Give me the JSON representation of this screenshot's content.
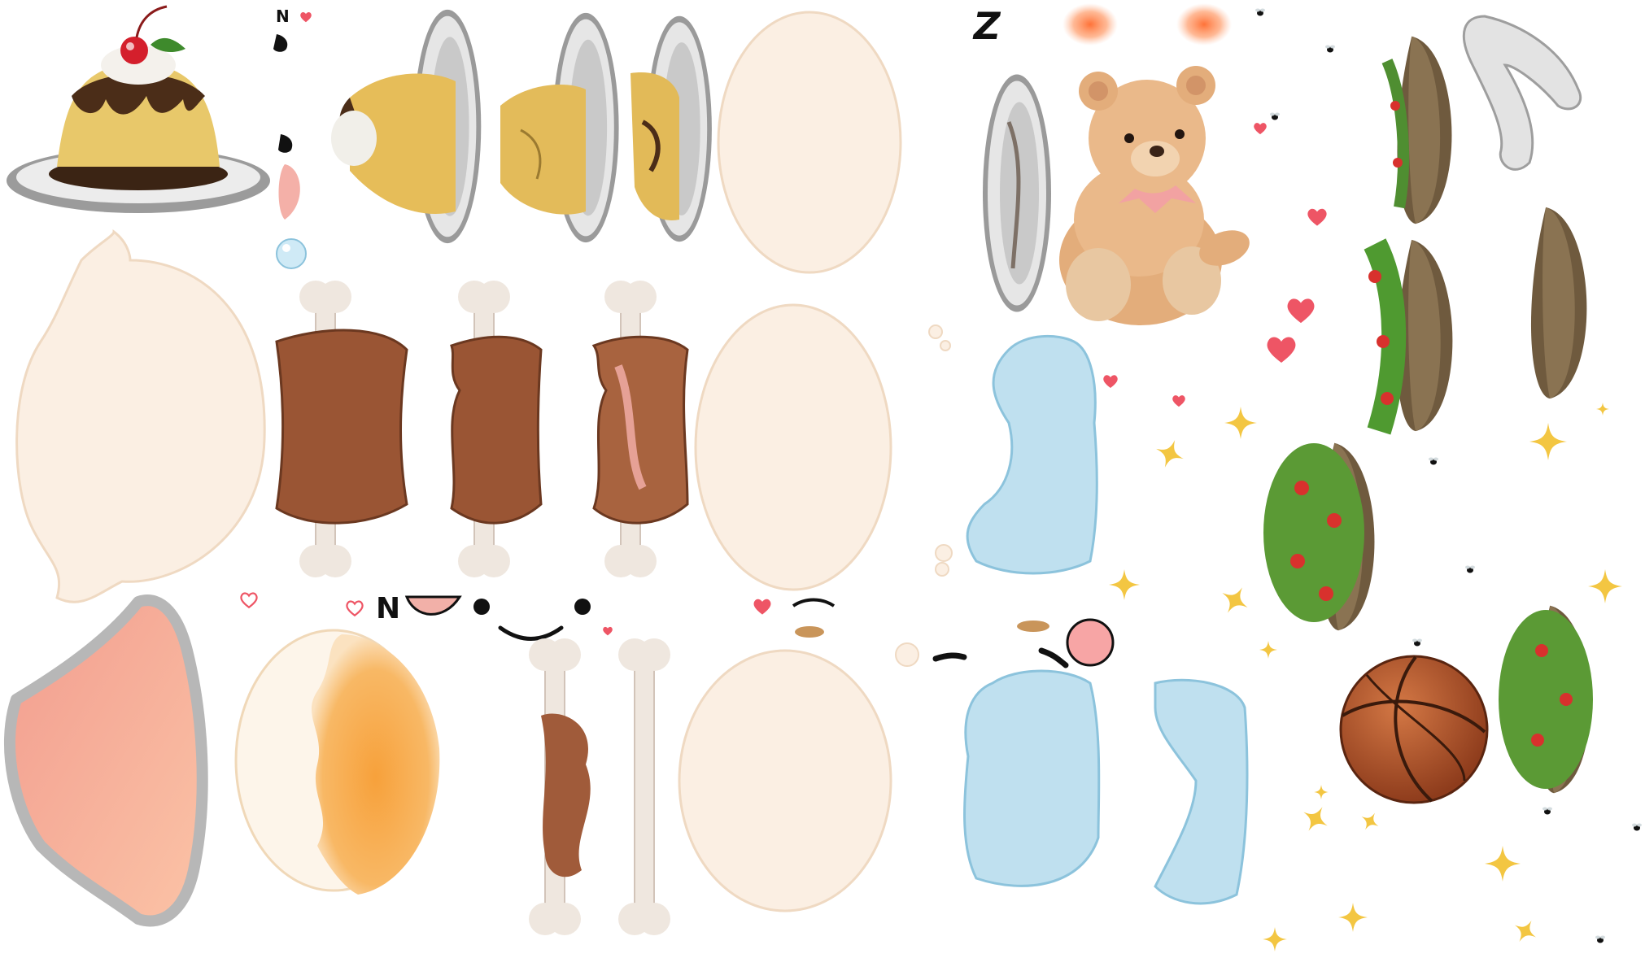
{
  "sheet": {
    "type": "sprite-atlas",
    "background": "#ffffff",
    "glyphs": {
      "sleep": "Z",
      "nose_mark_small": "N",
      "nose_mark_large": "N"
    },
    "palette": {
      "skin": "#fbefe3",
      "skin_edge": "#efd9c2",
      "meat": "#9a5534",
      "bone": "#f0e8e1",
      "bubble": "#bfe0ef",
      "bubble_edge": "#8cc3dc",
      "flan": "#e8c86a",
      "caramel": "#5a3a22",
      "plate": "#dcdcdc",
      "bear": "#e9b887",
      "salad_bowl": "#7a6547",
      "salad_leaf": "#5b9a35",
      "tomato": "#d8312d",
      "basketball": "#b6552b",
      "heart": "#ee5565",
      "sparkle": "#f3c642",
      "blanket": "#f6a79a",
      "juice": "#f7a94a"
    }
  }
}
